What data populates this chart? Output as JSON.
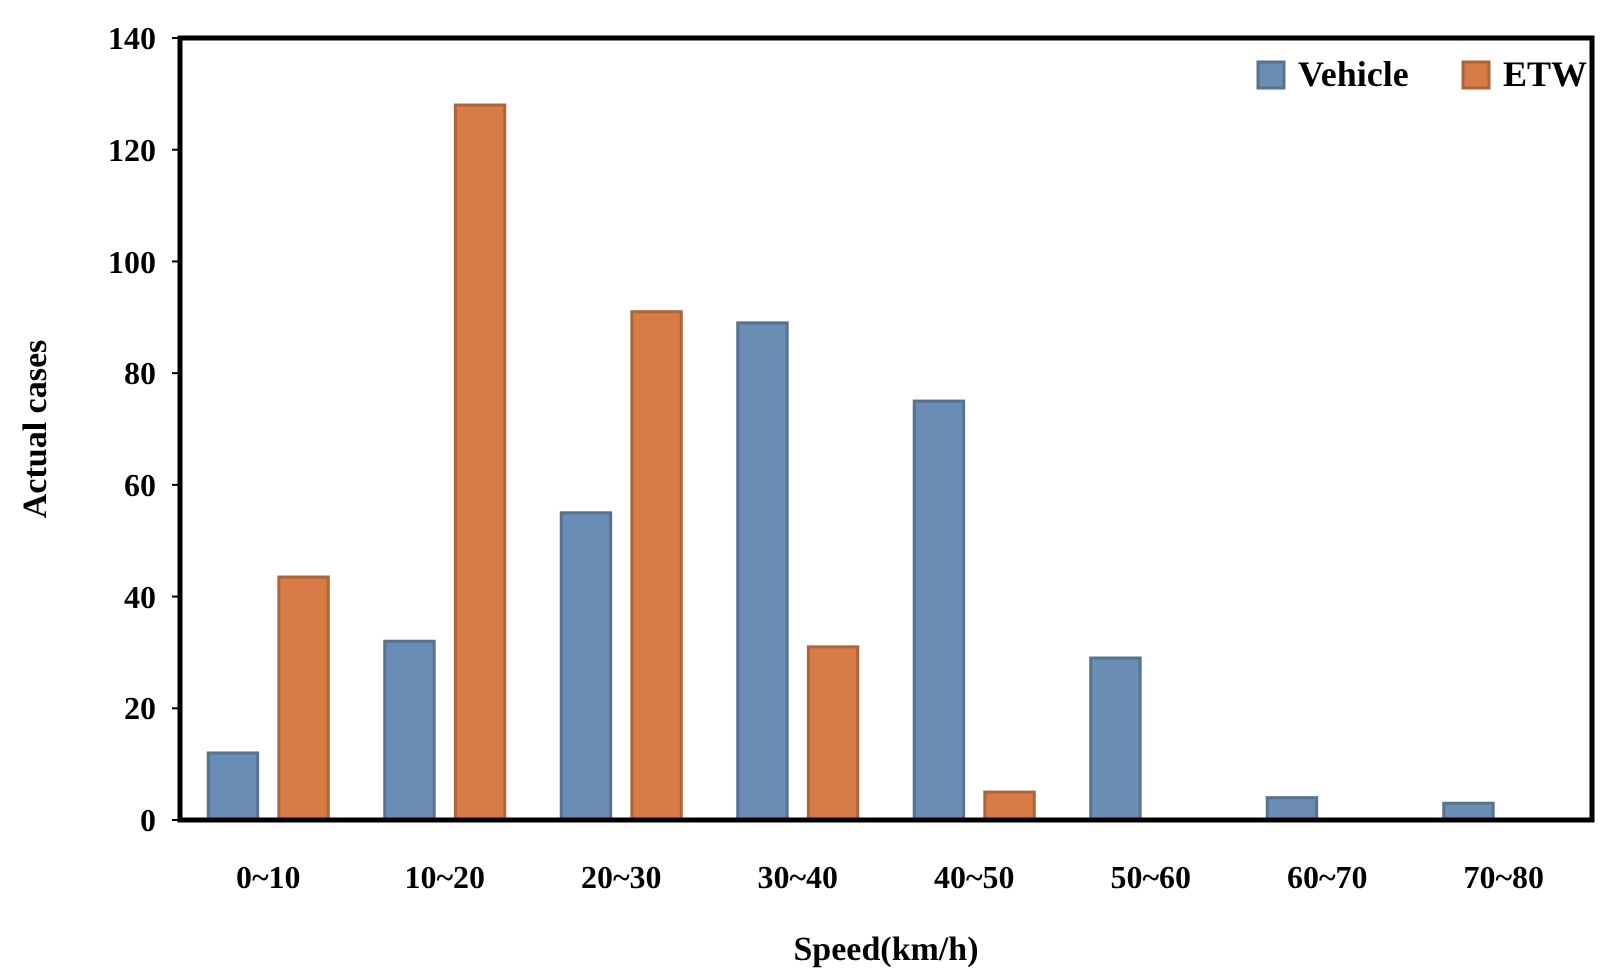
{
  "chart_data": {
    "type": "bar",
    "xlabel": "Speed(km/h)",
    "ylabel": "Actual cases",
    "categories": [
      "0~10",
      "10~20",
      "20~30",
      "30~40",
      "40~50",
      "50~60",
      "60~70",
      "70~80"
    ],
    "series": [
      {
        "name": "Vehicle",
        "color": "#6a8db5",
        "values": [
          12,
          32,
          55,
          89,
          75,
          29,
          4,
          3
        ]
      },
      {
        "name": "ETW",
        "color": "#d77c47",
        "values": [
          43.5,
          128,
          91,
          31,
          5,
          0,
          0,
          0
        ]
      }
    ],
    "ylim": [
      0,
      140
    ],
    "yticks": [
      0,
      20,
      40,
      60,
      80,
      100,
      120,
      140
    ],
    "grid": false,
    "legend": "top right"
  }
}
